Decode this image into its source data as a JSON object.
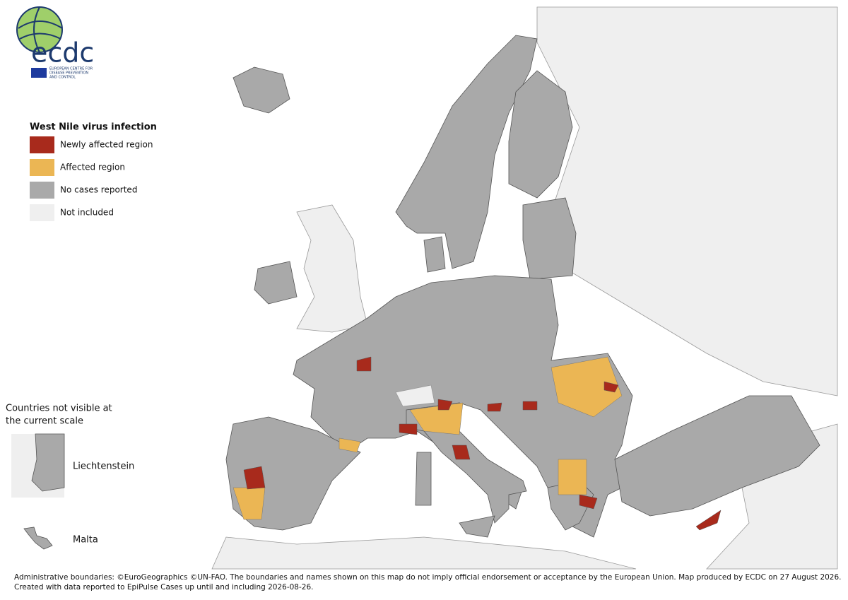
{
  "logo": {
    "name": "ecdc",
    "subtitle_lines": [
      "EUROPEAN CENTRE FOR",
      "DISEASE PREVENTION",
      "AND CONTROL"
    ]
  },
  "legend": {
    "title": "West Nile virus infection",
    "items": [
      {
        "label": "Newly affected region",
        "color": "#a82a1c"
      },
      {
        "label": "Affected region",
        "color": "#ebb654"
      },
      {
        "label": "No cases reported",
        "color": "#a9a9a9"
      },
      {
        "label": "Not included",
        "color": "#efefef"
      }
    ]
  },
  "inset": {
    "title_lines": [
      "Countries not visible at",
      "the current scale"
    ],
    "items": [
      "Liechtenstein",
      "Malta"
    ]
  },
  "footer": {
    "lines": [
      "Administrative boundaries: ©EuroGeographics ©UN-FAO. The boundaries and names shown on this map do not imply official endorsement or acceptance by the European Union. Map produced by ECDC on 27 August 2026.",
      "Created with data reported to EpiPulse Cases up until and including 2026-08-26."
    ]
  }
}
